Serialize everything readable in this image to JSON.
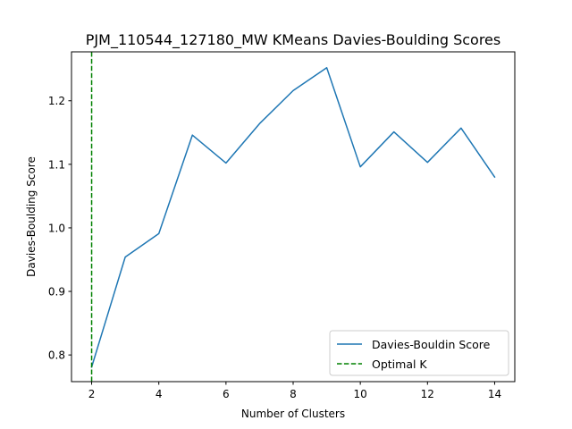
{
  "chart_data": {
    "type": "line",
    "title": "PJM_110544_127180_MW KMeans Davies-Boulding Scores",
    "xlabel": "Number of Clusters",
    "ylabel": "Davies-Boulding Score",
    "xlim": [
      1.4,
      14.6
    ],
    "ylim": [
      0.758,
      1.277
    ],
    "xticks": [
      2,
      4,
      6,
      8,
      10,
      12,
      14
    ],
    "yticks": [
      0.8,
      0.9,
      1.0,
      1.1,
      1.2
    ],
    "ytick_labels": [
      "0.8",
      "0.9",
      "1.0",
      "1.1",
      "1.2"
    ],
    "grid": false,
    "legend_position": "lower-right",
    "x": [
      2,
      3,
      4,
      5,
      6,
      7,
      8,
      9,
      10,
      11,
      12,
      13,
      14
    ],
    "series": [
      {
        "name": "Davies-Bouldin Score",
        "color": "#1f77b4",
        "style": "solid",
        "values": [
          0.781,
          0.954,
          0.991,
          1.146,
          1.102,
          1.164,
          1.216,
          1.252,
          1.096,
          1.151,
          1.103,
          1.157,
          1.08
        ]
      }
    ],
    "vlines": [
      {
        "name": "Optimal K",
        "x": 2,
        "color": "#008000",
        "style": "dashed"
      }
    ]
  }
}
